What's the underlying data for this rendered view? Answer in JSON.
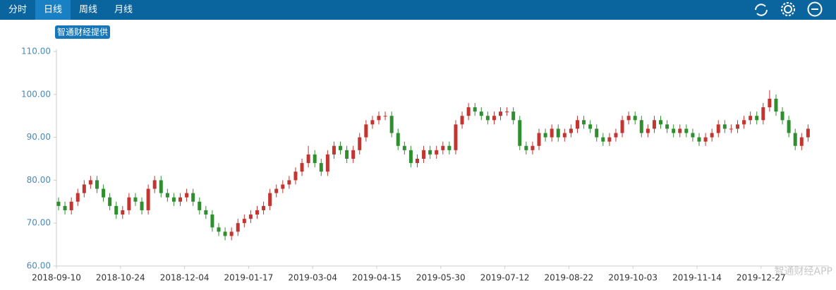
{
  "header": {
    "tabs": [
      "分时",
      "日线",
      "周线",
      "月线"
    ],
    "active": 1
  },
  "badge": "智通财经提供",
  "watermark": "智通财经APP",
  "chart_data": {
    "type": "candlestick",
    "up_color": "#c23531",
    "down_color": "#2f8f2f",
    "ylim": [
      60,
      110
    ],
    "yticks": [
      {
        "value": 60,
        "label": "60.00"
      },
      {
        "value": 70,
        "label": "70.00"
      },
      {
        "value": 80,
        "label": "80.00"
      },
      {
        "value": 90,
        "label": "90.00"
      },
      {
        "value": 100,
        "label": "100.00"
      },
      {
        "value": 110,
        "label": "110.00"
      }
    ],
    "categories": [
      "2018-09-10",
      null,
      null,
      null,
      null,
      null,
      null,
      null,
      null,
      null,
      "2018-10-24",
      null,
      null,
      null,
      null,
      null,
      null,
      null,
      null,
      null,
      "2018-12-04",
      null,
      null,
      null,
      null,
      null,
      null,
      null,
      null,
      null,
      "2019-01-17",
      null,
      null,
      null,
      null,
      null,
      null,
      null,
      null,
      null,
      "2019-03-04",
      null,
      null,
      null,
      null,
      null,
      null,
      null,
      null,
      null,
      "2019-04-15",
      null,
      null,
      null,
      null,
      null,
      null,
      null,
      null,
      null,
      "2019-05-30",
      null,
      null,
      null,
      null,
      null,
      null,
      null,
      null,
      null,
      "2019-07-12",
      null,
      null,
      null,
      null,
      null,
      null,
      null,
      null,
      null,
      "2019-08-22",
      null,
      null,
      null,
      null,
      null,
      null,
      null,
      null,
      null,
      "2019-10-03",
      null,
      null,
      null,
      null,
      null,
      null,
      null,
      null,
      null,
      "2019-11-14",
      null,
      null,
      null,
      null,
      null,
      null,
      null,
      null,
      null,
      "2019-12-27",
      null,
      null,
      null,
      null,
      null,
      null,
      null
    ],
    "open": [
      75,
      74,
      73,
      75,
      77,
      79,
      80,
      78,
      76,
      74,
      72,
      73,
      76,
      75,
      73,
      78,
      80,
      77,
      76,
      75,
      76,
      77,
      75,
      73,
      72,
      69,
      68,
      67,
      68,
      70,
      71,
      72,
      73,
      74,
      77,
      78,
      79,
      80,
      82,
      84,
      86,
      84,
      82,
      86,
      88,
      87,
      85,
      87,
      90,
      93,
      94,
      95,
      95,
      91,
      88,
      87,
      84,
      85,
      87,
      86,
      87,
      88,
      87,
      93,
      95,
      97,
      96,
      95,
      94,
      95,
      96,
      96,
      94,
      88,
      87,
      88,
      91,
      90,
      92,
      90,
      91,
      92,
      94,
      93,
      92,
      90,
      89,
      90,
      91,
      94,
      95,
      94,
      91,
      92,
      94,
      93,
      92,
      91,
      92,
      91,
      90,
      89,
      90,
      91,
      93,
      92,
      92,
      93,
      94,
      95,
      94,
      97,
      99,
      96,
      94,
      91,
      88,
      90
    ],
    "high": [
      76,
      75,
      76,
      78,
      80,
      81,
      81,
      79,
      77,
      75,
      74,
      77,
      77,
      76,
      79,
      81,
      81,
      78,
      77,
      77,
      78,
      78,
      76,
      74,
      73,
      70,
      69,
      69,
      71,
      72,
      73,
      74,
      75,
      78,
      79,
      80,
      81,
      83,
      85,
      88,
      87,
      85,
      87,
      89,
      89,
      88,
      88,
      91,
      94,
      95,
      96,
      96,
      96,
      92,
      89,
      88,
      86,
      88,
      88,
      88,
      89,
      89,
      94,
      96,
      98,
      98,
      97,
      96,
      96,
      97,
      97,
      97,
      95,
      89,
      89,
      92,
      92,
      93,
      93,
      92,
      93,
      95,
      95,
      94,
      93,
      91,
      91,
      92,
      95,
      96,
      96,
      95,
      93,
      95,
      95,
      94,
      93,
      93,
      93,
      92,
      91,
      91,
      92,
      94,
      94,
      93,
      94,
      95,
      96,
      96,
      98,
      101,
      100,
      97,
      95,
      92,
      91,
      93
    ],
    "low": [
      73,
      72,
      72,
      74,
      76,
      78,
      77,
      75,
      73,
      71,
      71,
      72,
      74,
      72,
      72,
      77,
      76,
      75,
      74,
      74,
      75,
      74,
      72,
      71,
      68,
      67,
      66,
      66,
      67,
      69,
      70,
      71,
      72,
      73,
      76,
      77,
      78,
      79,
      81,
      83,
      83,
      81,
      81,
      85,
      86,
      84,
      84,
      86,
      89,
      92,
      93,
      94,
      90,
      87,
      86,
      83,
      83,
      84,
      85,
      85,
      86,
      86,
      86,
      92,
      94,
      95,
      94,
      93,
      93,
      94,
      95,
      93,
      87,
      86,
      86,
      87,
      89,
      89,
      89,
      89,
      90,
      91,
      92,
      91,
      89,
      88,
      88,
      89,
      90,
      93,
      93,
      90,
      90,
      91,
      92,
      91,
      90,
      90,
      90,
      89,
      88,
      88,
      89,
      90,
      91,
      91,
      91,
      92,
      93,
      93,
      93,
      96,
      95,
      93,
      90,
      87,
      87,
      89
    ],
    "close": [
      74,
      73,
      75,
      77,
      79,
      80,
      78,
      76,
      74,
      72,
      73,
      76,
      75,
      73,
      78,
      80,
      77,
      76,
      75,
      76,
      77,
      75,
      73,
      72,
      69,
      68,
      67,
      68,
      70,
      71,
      72,
      73,
      74,
      77,
      78,
      79,
      80,
      82,
      84,
      86,
      84,
      82,
      86,
      88,
      87,
      85,
      87,
      90,
      93,
      94,
      95,
      95,
      91,
      88,
      87,
      84,
      85,
      87,
      86,
      87,
      88,
      87,
      93,
      95,
      97,
      96,
      95,
      94,
      95,
      96,
      96,
      94,
      88,
      87,
      88,
      91,
      90,
      92,
      90,
      91,
      92,
      94,
      93,
      92,
      90,
      89,
      90,
      91,
      94,
      95,
      94,
      91,
      92,
      94,
      93,
      92,
      91,
      92,
      91,
      90,
      89,
      90,
      91,
      93,
      92,
      92,
      93,
      94,
      95,
      94,
      97,
      99,
      96,
      94,
      91,
      88,
      90,
      92
    ]
  }
}
